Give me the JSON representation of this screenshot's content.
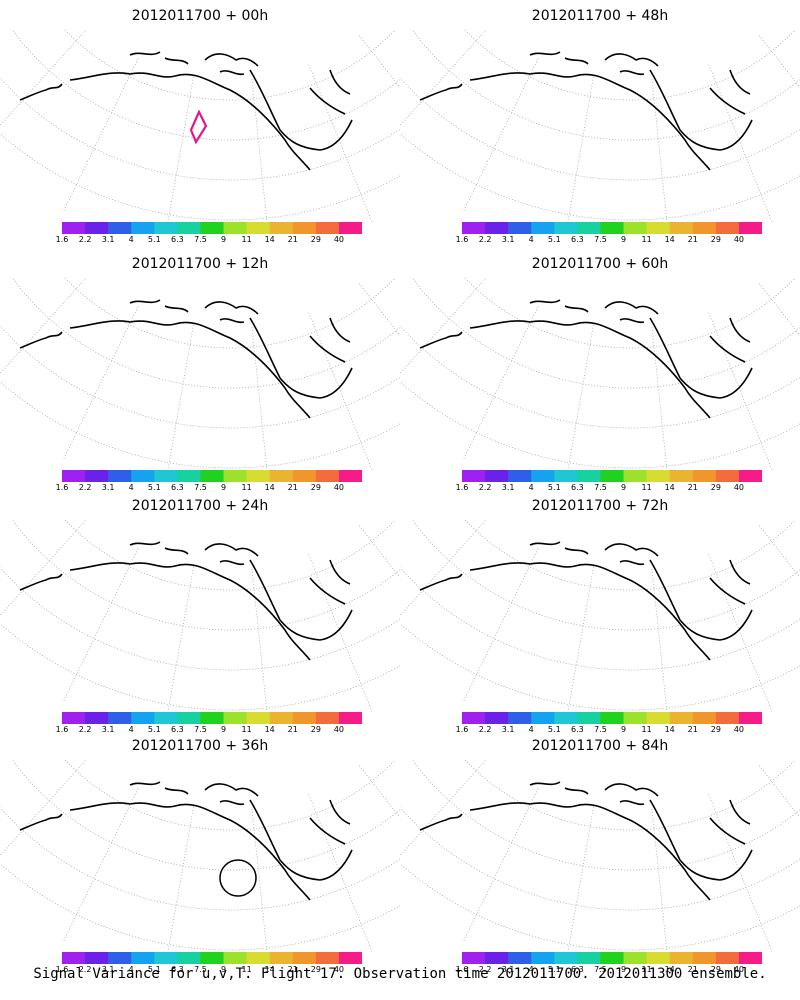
{
  "footer": "Signal Variance for u,v,T. Flight 17. Observation time 2012011700. 2012011300 ensemble.",
  "colorbar": {
    "labels": [
      "1.6",
      "2.2",
      "3.1",
      "4",
      "5.1",
      "6.3",
      "7.5",
      "9",
      "11",
      "14",
      "21",
      "29",
      "40"
    ],
    "colors": [
      "#a020f0",
      "#6a22e8",
      "#2f5fe8",
      "#15a3f0",
      "#1fc6d4",
      "#19d0a0",
      "#1fd21f",
      "#9de22a",
      "#d8dc30",
      "#e8b432",
      "#f0962c",
      "#f46b3c",
      "#f41c86"
    ]
  },
  "panels": [
    {
      "title": "2012011700 + 00h",
      "level": 0
    },
    {
      "title": "2012011700 + 48h",
      "level": 4
    },
    {
      "title": "2012011700 + 12h",
      "level": 1
    },
    {
      "title": "2012011700 + 60h",
      "level": 5
    },
    {
      "title": "2012011700 + 24h",
      "level": 2
    },
    {
      "title": "2012011700 + 72h",
      "level": 6
    },
    {
      "title": "2012011700 + 36h",
      "level": 3
    },
    {
      "title": "2012011700 + 84h",
      "level": 7
    }
  ]
}
